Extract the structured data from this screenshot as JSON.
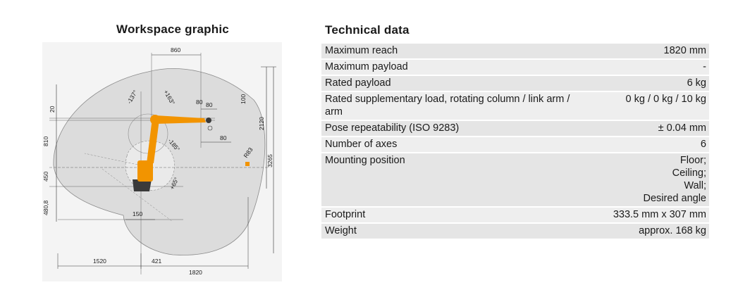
{
  "workspace": {
    "title": "Workspace graphic",
    "dimensions": {
      "d860": "860",
      "d80a": "80",
      "d100": "100",
      "d80b": "80",
      "d80c": "80",
      "d2120": "2120",
      "d3265": "3265",
      "d20": "20",
      "d810": "810",
      "d450": "450",
      "d480": "480,8",
      "d150": "150",
      "d1520": "1520",
      "d421": "421",
      "d1820": "1820",
      "r83": "R83",
      "a137": "-137°",
      "a163": "+163°",
      "a185": "-185°",
      "a65": "+65°"
    },
    "colors": {
      "robot_orange": "#f29400",
      "robot_dark": "#3a3a3a",
      "envelope": "#dcdcdc"
    }
  },
  "technical": {
    "title": "Technical data",
    "rows": [
      {
        "label": "Maximum reach",
        "value": [
          "1820 mm"
        ]
      },
      {
        "label": "Maximum payload",
        "value": [
          "-"
        ]
      },
      {
        "label": "Rated payload",
        "value": [
          "6 kg"
        ]
      },
      {
        "label": "Rated supplementary load, rotating column / link arm / arm",
        "value": [
          "0 kg / 0 kg / 10 kg"
        ]
      },
      {
        "label": "Pose repeatability (ISO 9283)",
        "value": [
          "± 0.04 mm"
        ]
      },
      {
        "label": "Number of axes",
        "value": [
          "6"
        ]
      },
      {
        "label": "Mounting position",
        "value": [
          "Floor;",
          "Ceiling;",
          "Wall;",
          "Desired angle"
        ]
      },
      {
        "label": "Footprint",
        "value": [
          "333.5 mm x 307 mm"
        ]
      },
      {
        "label": "Weight",
        "value": [
          "approx. 168 kg"
        ]
      }
    ]
  }
}
